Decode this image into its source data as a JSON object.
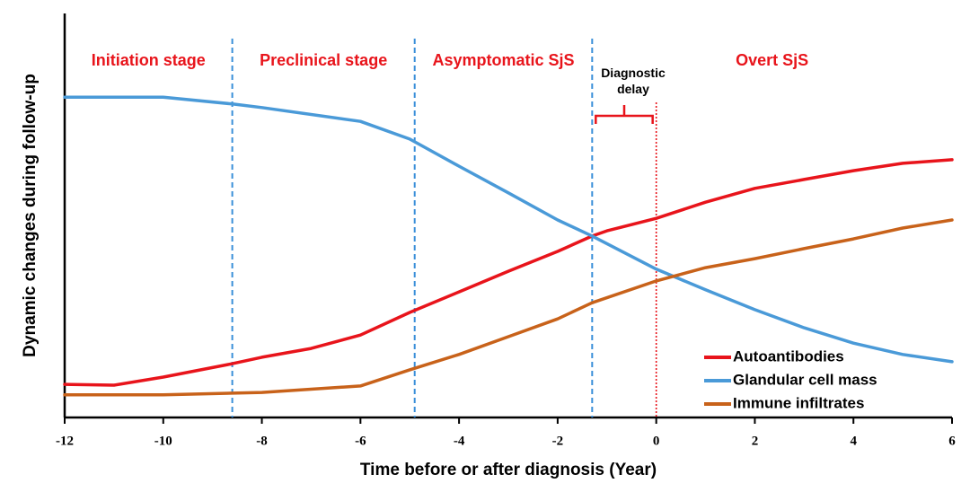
{
  "chart_data": {
    "type": "line",
    "x_label": "Time before or after diagnosis (Year)",
    "y_label": "Dynamic changes during follow-up",
    "xlim": [
      -12,
      6
    ],
    "xticks": [
      -12,
      -10,
      -8,
      -6,
      -4,
      -2,
      0,
      2,
      4,
      6
    ],
    "ylim": [
      0,
      100
    ],
    "stages": [
      "Initiation stage",
      "Preclinical stage",
      "Asymptomatic SjS",
      "Overt SjS"
    ],
    "stage_boundaries": [
      -8.6,
      -4.9,
      -1.3
    ],
    "boundary_color": "#3a8fd9",
    "diagnosis_x": 0,
    "diagnosis_color": "#e8141b",
    "annotation": "Diagnostic delay",
    "legend": "lower right",
    "series": [
      {
        "name": "Autoantibodies",
        "color": "#e8141b",
        "x": [
          -12,
          -11,
          -10,
          -8.6,
          -8,
          -7,
          -6,
          -5,
          -4,
          -3,
          -2,
          -1.3,
          -1,
          0,
          1,
          2,
          3,
          4,
          5,
          6
        ],
        "values": [
          8.2,
          8,
          10,
          13.3,
          14.9,
          17.1,
          20.4,
          26,
          31.1,
          36.2,
          41.1,
          44.9,
          46.2,
          49.3,
          53.3,
          56.7,
          58.9,
          61.1,
          62.9,
          63.8
        ]
      },
      {
        "name": "Glandular cell mass",
        "color": "#4a9ad8",
        "x": [
          -12,
          -10,
          -8.6,
          -8,
          -6,
          -5,
          -4,
          -3,
          -2,
          -1.3,
          0,
          1,
          2,
          3,
          4,
          5,
          6
        ],
        "values": [
          79.3,
          79.3,
          77.6,
          76.7,
          73.3,
          68.9,
          62.2,
          55.6,
          48.9,
          44.9,
          36.7,
          31.6,
          26.7,
          22.2,
          18.4,
          15.6,
          13.8
        ]
      },
      {
        "name": "Immune infiltrates",
        "color": "#c8621a",
        "x": [
          -12,
          -10,
          -8,
          -6,
          -5,
          -4,
          -3,
          -2,
          -1.3,
          0,
          1,
          2,
          3,
          4,
          5,
          6
        ],
        "values": [
          5.6,
          5.6,
          6.2,
          7.8,
          11.8,
          15.6,
          20,
          24.4,
          28.4,
          33.8,
          37.1,
          39.3,
          41.8,
          44.2,
          46.9,
          48.9
        ]
      }
    ]
  }
}
